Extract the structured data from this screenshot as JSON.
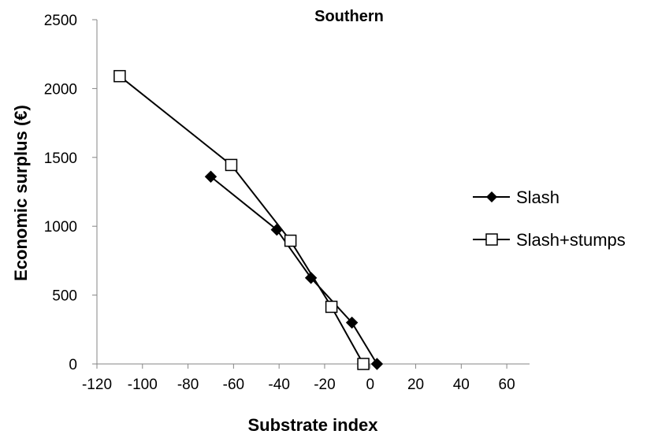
{
  "chart_data": {
    "type": "scatter",
    "title": "Southern",
    "xlabel": "Substrate index",
    "ylabel": "Economic surplus (€)",
    "xlim": [
      -120,
      70
    ],
    "ylim": [
      0,
      2500
    ],
    "x_ticks": [
      -120,
      -100,
      -80,
      -60,
      -40,
      -20,
      0,
      20,
      40,
      60
    ],
    "y_ticks": [
      0,
      500,
      1000,
      1500,
      2000,
      2500
    ],
    "grid": false,
    "legend_position": "right",
    "series": [
      {
        "name": "Slash",
        "marker": "diamond-filled",
        "color": "#000000",
        "points": [
          {
            "x": -70,
            "y": 1360
          },
          {
            "x": -41,
            "y": 975
          },
          {
            "x": -26,
            "y": 625
          },
          {
            "x": -8,
            "y": 300
          },
          {
            "x": 3,
            "y": 0
          }
        ]
      },
      {
        "name": "Slash+stumps",
        "marker": "square-open",
        "color": "#000000",
        "points": [
          {
            "x": -110,
            "y": 2090
          },
          {
            "x": -61,
            "y": 1445
          },
          {
            "x": -35,
            "y": 895
          },
          {
            "x": -17,
            "y": 415
          },
          {
            "x": -3,
            "y": 0
          }
        ]
      }
    ]
  }
}
